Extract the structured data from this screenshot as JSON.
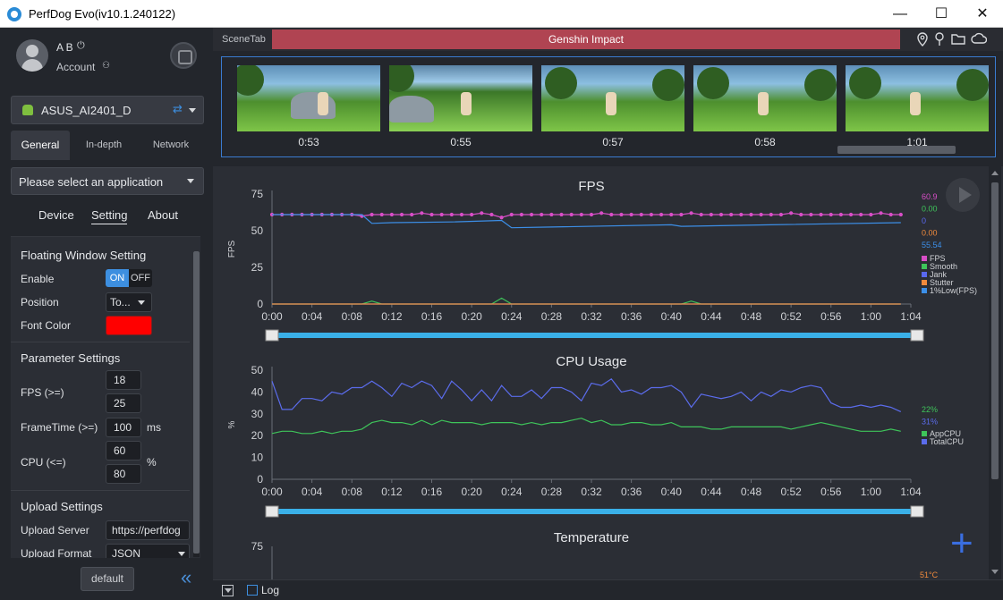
{
  "window": {
    "title": "PerfDog Evo(iv10.1.240122)",
    "minimize": "—",
    "maximize": "☐",
    "close": "✕"
  },
  "user": {
    "name": "A B",
    "power_glyph": "⏻",
    "account_label": "Account",
    "account_glyph": "⚇"
  },
  "device": {
    "name": "ASUS_AI2401_D",
    "usb_glyph": "⇄"
  },
  "tabs": [
    {
      "label": "General"
    },
    {
      "label": "In-depth"
    },
    {
      "label": "Network"
    }
  ],
  "app_select": {
    "placeholder": "Please select an application"
  },
  "subtabs": [
    {
      "label": "Device"
    },
    {
      "label": "Setting"
    },
    {
      "label": "About"
    }
  ],
  "floating": {
    "title": "Floating Window Setting",
    "enable_label": "Enable",
    "on": "ON",
    "off": "OFF",
    "position_label": "Position",
    "position_value": "To...",
    "font_color_label": "Font Color",
    "font_color": "#ff0000"
  },
  "params": {
    "title": "Parameter Settings",
    "fps_label": "FPS (>=)",
    "fps_values": [
      "18",
      "25"
    ],
    "frametime_label": "FrameTime (>=)",
    "frametime_value": "100",
    "frametime_unit": "ms",
    "cpu_label": "CPU (<=)",
    "cpu_values": [
      "60",
      "80"
    ],
    "cpu_unit": "%"
  },
  "upload": {
    "title": "Upload Settings",
    "server_label": "Upload Server",
    "server_value": "https://perfdog",
    "format_label": "Upload Format",
    "format_value": "JSON"
  },
  "default_button": "default",
  "collapse_glyph": "«",
  "scene": {
    "tab_label": "SceneTab",
    "game": "Genshin Impact",
    "icons": [
      "location-icon",
      "pin-icon",
      "folder-icon",
      "cloud-icon"
    ]
  },
  "thumbnails": [
    {
      "time": "0:53"
    },
    {
      "time": "0:55"
    },
    {
      "time": "0:57"
    },
    {
      "time": "0:58"
    },
    {
      "time": "1:01"
    }
  ],
  "log_label": "Log",
  "plus_glyph": "+",
  "chart_data": [
    {
      "type": "line",
      "title": "FPS",
      "ylabel": "FPS",
      "ylim": [
        0,
        75
      ],
      "yticks": [
        "0",
        "25",
        "50",
        "75"
      ],
      "xticks": [
        "0:00",
        "0:04",
        "0:08",
        "0:12",
        "0:16",
        "0:20",
        "0:24",
        "0:28",
        "0:32",
        "0:36",
        "0:40",
        "0:44",
        "0:48",
        "0:52",
        "0:56",
        "1:00",
        "1:04"
      ],
      "xlim_seconds": [
        0,
        64
      ],
      "series": [
        {
          "name": "FPS",
          "color": "#d84ec7",
          "x": [
            0,
            1,
            2,
            3,
            4,
            5,
            6,
            7,
            8,
            9,
            10,
            11,
            12,
            13,
            14,
            15,
            16,
            17,
            18,
            19,
            20,
            21,
            22,
            23,
            24,
            25,
            26,
            27,
            28,
            29,
            30,
            31,
            32,
            33,
            34,
            35,
            36,
            37,
            38,
            39,
            40,
            41,
            42,
            43,
            44,
            45,
            46,
            47,
            48,
            49,
            50,
            51,
            52,
            53,
            54,
            55,
            56,
            57,
            58,
            59,
            60,
            61,
            62,
            63
          ],
          "values": [
            61,
            61,
            61,
            61,
            61,
            61,
            61,
            61,
            61,
            60,
            61,
            61,
            61,
            61,
            61,
            62,
            61,
            61,
            61,
            61,
            61,
            62,
            61,
            59,
            61,
            61,
            61,
            61,
            61,
            61,
            61,
            61,
            61,
            62,
            61,
            61,
            61,
            61,
            61,
            61,
            61,
            61,
            62,
            61,
            61,
            61,
            61,
            61,
            61,
            61,
            61,
            61,
            62,
            61,
            61,
            61,
            61,
            61,
            61,
            61,
            61,
            62,
            61,
            61
          ],
          "markers": true
        },
        {
          "name": "Smooth",
          "color": "#3ec45a",
          "x": [
            0,
            8,
            9,
            10,
            11,
            21,
            22,
            23,
            24,
            41,
            42,
            43,
            63
          ],
          "values": [
            0,
            0,
            0,
            2,
            0,
            0,
            0,
            4,
            0,
            0,
            2,
            0,
            0
          ]
        },
        {
          "name": "Jank",
          "color": "#5968f0",
          "x": [
            0,
            63
          ],
          "values": [
            0,
            0
          ]
        },
        {
          "name": "Stutter",
          "color": "#f08a3c",
          "x": [
            0,
            63
          ],
          "values": [
            0,
            0
          ]
        },
        {
          "name": "1%Low(FPS)",
          "color": "#3c8fe8",
          "x": [
            0,
            9,
            10,
            12,
            18,
            23,
            24,
            28,
            40,
            41,
            50,
            63
          ],
          "values": [
            61,
            61,
            55,
            55.5,
            56,
            57,
            52,
            52.5,
            54,
            53,
            54,
            55.5
          ]
        }
      ],
      "legend_values": [
        "60.9",
        "0.00",
        "0",
        "0.00",
        "55.54"
      ]
    },
    {
      "type": "line",
      "title": "CPU Usage",
      "ylabel": "%",
      "ylim": [
        0,
        50
      ],
      "yticks": [
        "0",
        "10",
        "20",
        "30",
        "40",
        "50"
      ],
      "xticks": [
        "0:00",
        "0:04",
        "0:08",
        "0:12",
        "0:16",
        "0:20",
        "0:24",
        "0:28",
        "0:32",
        "0:36",
        "0:40",
        "0:44",
        "0:48",
        "0:52",
        "0:56",
        "1:00",
        "1:04"
      ],
      "xlim_seconds": [
        0,
        64
      ],
      "series": [
        {
          "name": "AppCPU",
          "color": "#3ec45a",
          "x": [
            0,
            1,
            2,
            3,
            4,
            5,
            6,
            7,
            8,
            9,
            10,
            11,
            12,
            13,
            14,
            15,
            16,
            17,
            18,
            19,
            20,
            21,
            22,
            23,
            24,
            25,
            26,
            27,
            28,
            29,
            30,
            31,
            32,
            33,
            34,
            35,
            36,
            37,
            38,
            39,
            40,
            41,
            42,
            43,
            44,
            45,
            46,
            47,
            48,
            49,
            50,
            51,
            52,
            53,
            54,
            55,
            56,
            57,
            58,
            59,
            60,
            61,
            62,
            63
          ],
          "values": [
            21,
            22,
            22,
            21,
            21,
            22,
            21,
            22,
            22,
            23,
            26,
            27,
            26,
            26,
            25,
            27,
            25,
            27,
            26,
            26,
            26,
            25,
            26,
            26,
            26,
            25,
            26,
            25,
            26,
            26,
            27,
            28,
            26,
            27,
            25,
            25,
            26,
            26,
            25,
            25,
            26,
            24,
            24,
            24,
            23,
            23,
            24,
            24,
            24,
            24,
            24,
            24,
            23,
            24,
            25,
            26,
            25,
            24,
            23,
            22,
            22,
            22,
            23,
            22
          ]
        },
        {
          "name": "TotalCPU",
          "color": "#5b6cec",
          "x": [
            0,
            1,
            2,
            3,
            4,
            5,
            6,
            7,
            8,
            9,
            10,
            11,
            12,
            13,
            14,
            15,
            16,
            17,
            18,
            19,
            20,
            21,
            22,
            23,
            24,
            25,
            26,
            27,
            28,
            29,
            30,
            31,
            32,
            33,
            34,
            35,
            36,
            37,
            38,
            39,
            40,
            41,
            42,
            43,
            44,
            45,
            46,
            47,
            48,
            49,
            50,
            51,
            52,
            53,
            54,
            55,
            56,
            57,
            58,
            59,
            60,
            61,
            62,
            63
          ],
          "values": [
            45,
            32,
            32,
            37,
            37,
            36,
            40,
            39,
            42,
            42,
            45,
            42,
            38,
            44,
            42,
            45,
            43,
            37,
            45,
            41,
            36,
            41,
            36,
            43,
            38,
            38,
            41,
            37,
            42,
            42,
            40,
            36,
            44,
            43,
            46,
            40,
            41,
            39,
            42,
            42,
            43,
            40,
            33,
            39,
            38,
            37,
            38,
            40,
            36,
            40,
            38,
            41,
            40,
            42,
            43,
            42,
            35,
            33,
            33,
            34,
            33,
            34,
            33,
            31
          ]
        }
      ],
      "legend_values": [
        "22%",
        "31%"
      ]
    },
    {
      "type": "line",
      "title": "Temperature",
      "ylim": [
        0,
        75
      ],
      "yticks": [
        "75"
      ],
      "legend_values": [
        "51°C"
      ]
    }
  ]
}
